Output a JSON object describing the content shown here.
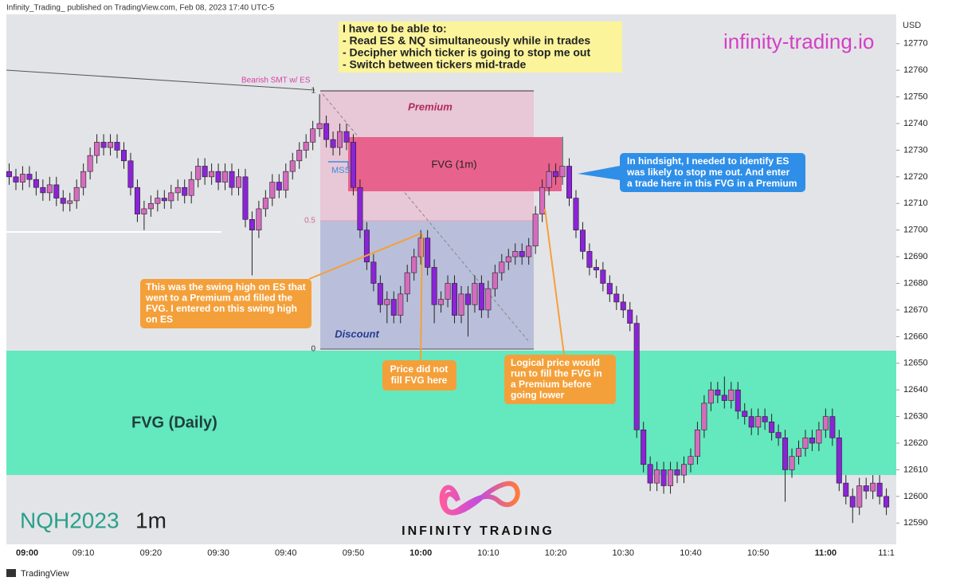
{
  "header": {
    "published": "Infinity_Trading_ published on TradingView.com, Feb 08, 2023 17:40 UTC-5",
    "footer": "TradingView"
  },
  "chart_data": {
    "type": "candlestick",
    "symbol": "NQH2023",
    "interval": "1m",
    "y_label": "USD",
    "up_color": "#d46cbe",
    "down_color": "#8a24d6",
    "ylim": [
      12582,
      12781
    ],
    "yticks": [
      12590,
      12600,
      12610,
      12620,
      12630,
      12640,
      12650,
      12660,
      12670,
      12680,
      12690,
      12700,
      12710,
      12720,
      12730,
      12740,
      12750,
      12760,
      12770
    ],
    "categories": [
      null,
      "09:00",
      null,
      null,
      null,
      null,
      null,
      null,
      null,
      null,
      null,
      "09:10",
      null,
      null,
      null,
      null,
      null,
      null,
      null,
      null,
      null,
      "09:20",
      null,
      null,
      null,
      null,
      null,
      null,
      null,
      null,
      null,
      "09:30",
      null,
      null,
      null,
      null,
      null,
      null,
      null,
      null,
      null,
      "09:40",
      null,
      null,
      null,
      null,
      null,
      null,
      null,
      null,
      null,
      "09:50",
      null,
      null,
      null,
      null,
      null,
      null,
      null,
      null,
      null,
      "10:00",
      null,
      null,
      null,
      null,
      null,
      null,
      null,
      null,
      null,
      "10:10",
      null,
      null,
      null,
      null,
      null,
      null,
      null,
      null,
      null,
      "10:20",
      null,
      null,
      null,
      null,
      null,
      null,
      null,
      null,
      null,
      "10:30",
      null,
      null,
      null,
      null,
      null,
      null,
      null,
      null,
      null,
      "10:40",
      null,
      null,
      null,
      null,
      null,
      null,
      null,
      null,
      null,
      "10:50",
      null,
      null,
      null,
      null,
      null,
      null,
      null,
      null,
      null,
      "11:00",
      null,
      null,
      null,
      null,
      null,
      null,
      null,
      null,
      "11:1"
    ],
    "open": [
      12722,
      12720,
      12718,
      12721,
      12719,
      12716,
      12714,
      12717,
      12712,
      12710,
      12711,
      12716,
      12722,
      12728,
      12733,
      12731,
      12733,
      12730,
      12726,
      12716,
      12706,
      12708,
      12710,
      12712,
      12711,
      12714,
      12716,
      12713,
      12719,
      12724,
      12720,
      12722,
      12718,
      12722,
      12716,
      12720,
      12704,
      12700,
      12708,
      12712,
      12718,
      12715,
      12722,
      12726,
      12730,
      12733,
      12738,
      12740,
      12734,
      12731,
      12737,
      12733,
      12716,
      12700,
      12688,
      12680,
      12672,
      12674,
      12668,
      12676,
      12684,
      12690,
      12697,
      12686,
      12672,
      12674,
      12680,
      12668,
      12676,
      12672,
      12680,
      12670,
      12678,
      12684,
      12688,
      12690,
      12692,
      12690,
      12694,
      12706,
      12716,
      12722,
      12720,
      12724,
      12712,
      12700,
      12692,
      12686,
      12685,
      12680,
      12676,
      12673,
      12670,
      12665,
      12625,
      12612,
      12605,
      12610,
      12604,
      12610,
      12608,
      12612,
      12615,
      12625,
      12635,
      12640,
      12638,
      12636,
      12640,
      12632,
      12630,
      12626,
      12630,
      12628,
      12624,
      12622,
      12610,
      12615,
      12618,
      12622,
      12620,
      12625,
      12630,
      12622,
      12605,
      12600,
      12596,
      12604,
      12602,
      12605,
      12600
    ],
    "high": [
      12725,
      12723,
      12724,
      12724,
      12722,
      12719,
      12720,
      12720,
      12715,
      12714,
      12719,
      12725,
      12731,
      12736,
      12736,
      12736,
      12736,
      12733,
      12729,
      12719,
      12711,
      12713,
      12715,
      12715,
      12717,
      12719,
      12719,
      12722,
      12727,
      12727,
      12725,
      12725,
      12725,
      12725,
      12723,
      12723,
      12707,
      12711,
      12715,
      12721,
      12721,
      12725,
      12729,
      12733,
      12736,
      12741,
      12751,
      12743,
      12737,
      12740,
      12740,
      12736,
      12719,
      12703,
      12691,
      12683,
      12677,
      12677,
      12679,
      12687,
      12693,
      12700,
      12700,
      12689,
      12677,
      12683,
      12683,
      12679,
      12679,
      12683,
      12683,
      12681,
      12687,
      12691,
      12693,
      12695,
      12695,
      12697,
      12709,
      12719,
      12725,
      12725,
      12735,
      12727,
      12715,
      12703,
      12695,
      12689,
      12688,
      12683,
      12679,
      12676,
      12673,
      12668,
      12628,
      12615,
      12613,
      12613,
      12613,
      12613,
      12615,
      12618,
      12628,
      12638,
      12643,
      12643,
      12645,
      12643,
      12643,
      12635,
      12633,
      12633,
      12633,
      12631,
      12627,
      12625,
      12618,
      12621,
      12625,
      12625,
      12628,
      12633,
      12633,
      12625,
      12608,
      12603,
      12607,
      12607,
      12608,
      12608,
      12603
    ],
    "low": [
      12717,
      12715,
      12715,
      12716,
      12713,
      12711,
      12711,
      12709,
      12707,
      12707,
      12708,
      12713,
      12719,
      12725,
      12728,
      12728,
      12727,
      12723,
      12713,
      12703,
      12700,
      12705,
      12707,
      12708,
      12708,
      12711,
      12710,
      12710,
      12716,
      12717,
      12717,
      12715,
      12715,
      12713,
      12713,
      12701,
      12683,
      12697,
      12705,
      12709,
      12712,
      12712,
      12719,
      12723,
      12727,
      12730,
      12735,
      12731,
      12728,
      12728,
      12730,
      12713,
      12697,
      12685,
      12677,
      12669,
      12665,
      12665,
      12665,
      12673,
      12681,
      12687,
      12683,
      12665,
      12669,
      12671,
      12665,
      12665,
      12660,
      12669,
      12667,
      12667,
      12675,
      12681,
      12685,
      12687,
      12687,
      12687,
      12691,
      12703,
      12713,
      12717,
      12717,
      12709,
      12697,
      12689,
      12683,
      12682,
      12677,
      12673,
      12670,
      12667,
      12662,
      12622,
      12609,
      12602,
      12602,
      12601,
      12601,
      12605,
      12605,
      12609,
      12612,
      12622,
      12632,
      12635,
      12633,
      12633,
      12629,
      12627,
      12623,
      12623,
      12625,
      12621,
      12619,
      12598,
      12607,
      12612,
      12615,
      12617,
      12617,
      12622,
      12619,
      12602,
      12597,
      12590,
      12593,
      12599,
      12599,
      12597,
      12593
    ],
    "close": [
      12720,
      12718,
      12721,
      12719,
      12716,
      12714,
      12717,
      12712,
      12710,
      12711,
      12716,
      12722,
      12728,
      12733,
      12731,
      12733,
      12730,
      12726,
      12716,
      12706,
      12708,
      12710,
      12712,
      12711,
      12714,
      12716,
      12713,
      12719,
      12724,
      12720,
      12722,
      12718,
      12722,
      12716,
      12720,
      12704,
      12700,
      12708,
      12712,
      12718,
      12715,
      12722,
      12726,
      12730,
      12733,
      12738,
      12740,
      12734,
      12731,
      12737,
      12733,
      12716,
      12700,
      12688,
      12680,
      12672,
      12674,
      12668,
      12676,
      12684,
      12690,
      12697,
      12686,
      12672,
      12674,
      12680,
      12668,
      12676,
      12672,
      12680,
      12670,
      12678,
      12684,
      12688,
      12690,
      12692,
      12690,
      12694,
      12706,
      12716,
      12722,
      12720,
      12724,
      12712,
      12700,
      12692,
      12686,
      12685,
      12680,
      12676,
      12673,
      12670,
      12665,
      12625,
      12612,
      12605,
      12610,
      12604,
      12610,
      12608,
      12612,
      12615,
      12625,
      12635,
      12640,
      12638,
      12636,
      12640,
      12632,
      12630,
      12626,
      12630,
      12628,
      12624,
      12622,
      12610,
      12615,
      12618,
      12622,
      12620,
      12625,
      12630,
      12622,
      12605,
      12600,
      12596,
      12604,
      12602,
      12605,
      12600,
      12596
    ]
  },
  "annotations": {
    "note": [
      "I have to be able to:",
      "- Read ES & NQ simultaneously while in trades",
      "- Decipher which ticker is going to stop me out",
      "- Switch between tickers mid-trade"
    ],
    "site": "infinity-trading.io",
    "smt": "Bearish SMT w/ ES",
    "premium": "Premium",
    "discount": "Discount",
    "fvg_1m": "FVG (1m)",
    "mss": "MSS",
    "fib_levels": [
      "1",
      "0.5",
      "0"
    ],
    "fvg_daily": "FVG (Daily)",
    "hindsight": [
      "In hindsight, I needed to identify ES",
      "was likely to stop me out. And enter",
      "a trade here in this FVG in a Premium"
    ],
    "swing_high": [
      "This was the swing high on ES that",
      "went to a Premium and filled the",
      "FVG. I entered on this swing high",
      "on ES"
    ],
    "not_fill": [
      "Price did not",
      "fill FVG here"
    ],
    "logical": [
      "Logical price would",
      "run to fill the FVG in",
      "a Premium before",
      "going lower"
    ],
    "brand": "INFINITY TRADING"
  }
}
